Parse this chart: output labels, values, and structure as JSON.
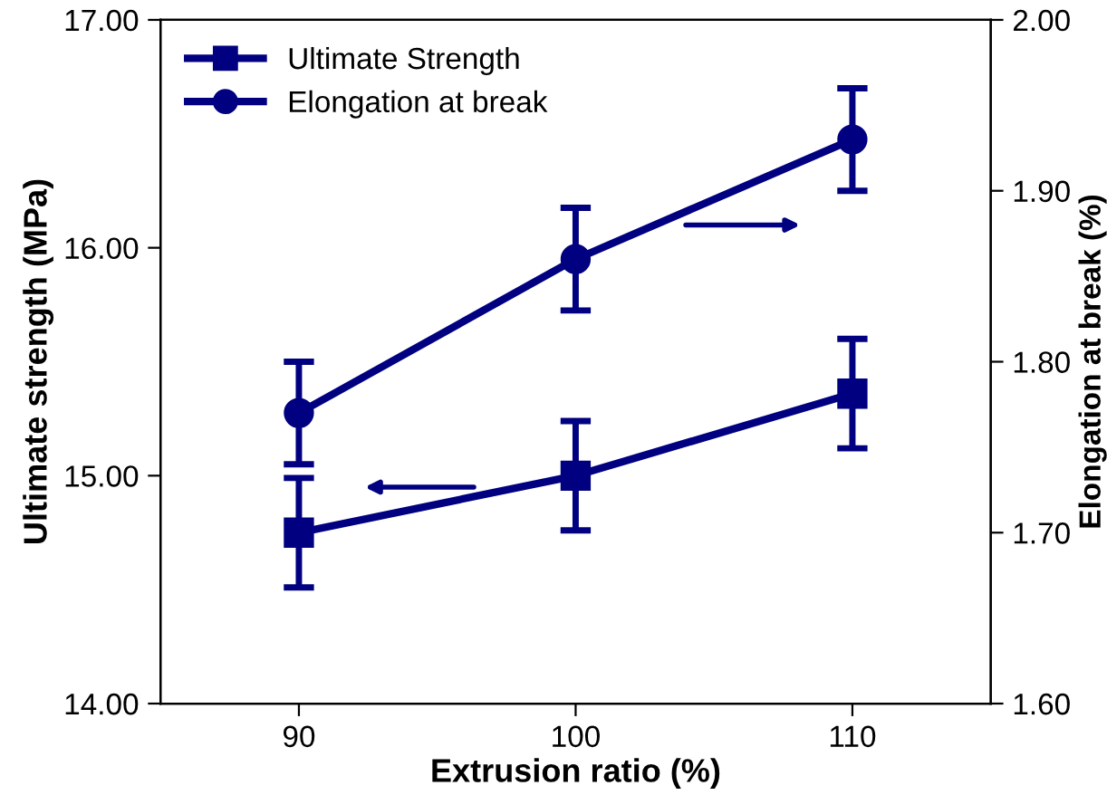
{
  "chart_data": {
    "type": "line",
    "xlabel": "Extrusion ratio (%)",
    "ylabel": "Ultimate strength (MPa)",
    "y2label": "Elongation at break (%)",
    "x": [
      90,
      100,
      110
    ],
    "xlim": [
      85,
      115
    ],
    "xticks": [
      90,
      100,
      110
    ],
    "ylim": [
      14,
      17
    ],
    "yticks": [
      {
        "value": 14,
        "label": "14.00"
      },
      {
        "value": 15,
        "label": "15.00"
      },
      {
        "value": 16,
        "label": "16.00"
      },
      {
        "value": 17,
        "label": "17.00"
      }
    ],
    "y2lim": [
      1.6,
      2.0
    ],
    "y2ticks": [
      {
        "value": 1.6,
        "label": "1.60"
      },
      {
        "value": 1.7,
        "label": "1.70"
      },
      {
        "value": 1.8,
        "label": "1.80"
      },
      {
        "value": 1.9,
        "label": "1.90"
      },
      {
        "value": 2.0,
        "label": "2.00"
      }
    ],
    "series": [
      {
        "name": "Ultimate Strength",
        "color": "#000080",
        "values": [
          14.75,
          15.0,
          15.36
        ],
        "errors": [
          0.24,
          0.24,
          0.24
        ],
        "marker": "square"
      },
      {
        "name": "Elongation at break",
        "color": "#000080",
        "values": [
          1.77,
          1.86,
          1.93
        ],
        "errors": [
          0.03,
          0.03,
          0.03
        ],
        "marker": "circle",
        "axis": "y2"
      }
    ],
    "legend": "top left",
    "grid": false,
    "line_style": "solid"
  }
}
